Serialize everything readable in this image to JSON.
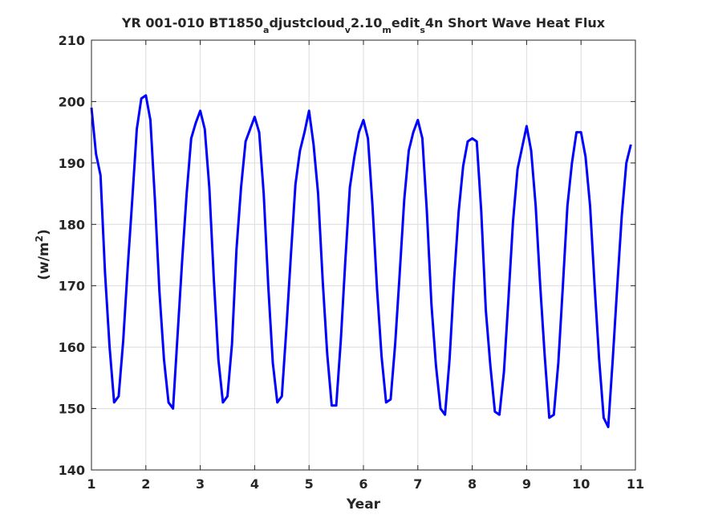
{
  "chart_data": {
    "type": "line",
    "title": {
      "segments": [
        {
          "text": "YR 001-010 BT1850",
          "sub": false
        },
        {
          "text": "a",
          "sub": true
        },
        {
          "text": "djustcloud",
          "sub": false
        },
        {
          "text": "v",
          "sub": true
        },
        {
          "text": "2.10",
          "sub": false
        },
        {
          "text": "m",
          "sub": true
        },
        {
          "text": "edit",
          "sub": false
        },
        {
          "text": "s",
          "sub": true
        },
        {
          "text": "4n Short Wave Heat Flux",
          "sub": false
        }
      ]
    },
    "xlabel": "Year",
    "ylabel": {
      "base": "(w/m",
      "sup": "2",
      "close": ")"
    },
    "xlim": [
      1,
      11
    ],
    "ylim": [
      140,
      210
    ],
    "xticks": [
      1,
      2,
      3,
      4,
      5,
      6,
      7,
      8,
      9,
      10,
      11
    ],
    "yticks": [
      140,
      150,
      160,
      170,
      180,
      190,
      200,
      210
    ],
    "grid": true,
    "line_color": "#0000ff",
    "series": [
      {
        "x_start": 1,
        "x_step": 0.0833333,
        "values": [
          199.0,
          191.5,
          188.0,
          172.0,
          160.0,
          151.0,
          152.0,
          161.0,
          173.0,
          184.0,
          195.5,
          200.5,
          201.0,
          197.0,
          184.0,
          169.0,
          158.0,
          151.0,
          150.0,
          162.0,
          174.0,
          185.0,
          194.0,
          196.5,
          198.5,
          195.5,
          186.0,
          171.0,
          158.0,
          151.0,
          152.0,
          160.5,
          176.0,
          186.0,
          193.5,
          195.5,
          197.5,
          195.0,
          185.0,
          170.0,
          157.5,
          151.0,
          152.0,
          163.0,
          175.0,
          186.5,
          192.0,
          195.0,
          198.5,
          193.0,
          185.0,
          171.0,
          159.0,
          150.5,
          150.5,
          161.0,
          174.0,
          186.0,
          191.0,
          195.0,
          197.0,
          194.0,
          183.0,
          169.5,
          158.5,
          151.0,
          151.5,
          160.5,
          172.0,
          184.0,
          192.0,
          195.0,
          197.0,
          194.0,
          182.0,
          167.0,
          157.0,
          150.0,
          149.0,
          158.0,
          171.0,
          182.0,
          189.5,
          193.5,
          194.0,
          193.5,
          182.0,
          166.0,
          157.0,
          149.5,
          149.0,
          156.0,
          168.0,
          180.5,
          189.0,
          192.5,
          196.0,
          192.0,
          183.0,
          170.0,
          158.5,
          148.5,
          149.0,
          157.5,
          170.0,
          183.0,
          190.0,
          195.0,
          195.0,
          191.0,
          183.0,
          170.0,
          158.0,
          148.5,
          147.0,
          158.0,
          170.0,
          181.5,
          190.0,
          193.0
        ]
      }
    ]
  }
}
